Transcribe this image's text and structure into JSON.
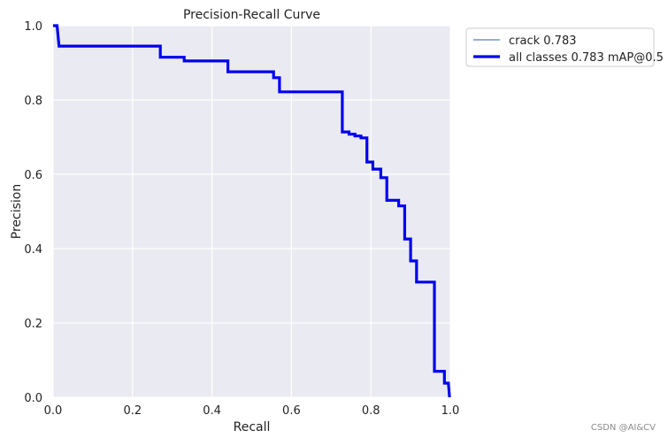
{
  "chart_data": {
    "type": "line",
    "title": "Precision-Recall Curve",
    "xlabel": "Recall",
    "ylabel": "Precision",
    "xlim": [
      0,
      1
    ],
    "ylim": [
      0,
      1
    ],
    "xticks": [
      "0.0",
      "0.2",
      "0.4",
      "0.6",
      "0.8",
      "1.0"
    ],
    "yticks": [
      "0.0",
      "0.2",
      "0.4",
      "0.6",
      "0.8",
      "1.0"
    ],
    "grid": true,
    "legend_position": "outside-top-right",
    "series": [
      {
        "name": "crack 0.783",
        "color": "#5b7fc0",
        "points": [
          [
            0.0,
            1.0
          ],
          [
            0.01,
            1.0
          ],
          [
            0.015,
            0.945
          ],
          [
            0.27,
            0.945
          ],
          [
            0.27,
            0.915
          ],
          [
            0.33,
            0.915
          ],
          [
            0.33,
            0.905
          ],
          [
            0.44,
            0.905
          ],
          [
            0.44,
            0.876
          ],
          [
            0.555,
            0.876
          ],
          [
            0.555,
            0.86
          ],
          [
            0.57,
            0.86
          ],
          [
            0.57,
            0.822
          ],
          [
            0.728,
            0.822
          ],
          [
            0.728,
            0.714
          ],
          [
            0.745,
            0.714
          ],
          [
            0.745,
            0.708
          ],
          [
            0.76,
            0.708
          ],
          [
            0.76,
            0.703
          ],
          [
            0.775,
            0.703
          ],
          [
            0.775,
            0.698
          ],
          [
            0.79,
            0.698
          ],
          [
            0.79,
            0.633
          ],
          [
            0.805,
            0.633
          ],
          [
            0.805,
            0.614
          ],
          [
            0.825,
            0.614
          ],
          [
            0.825,
            0.591
          ],
          [
            0.84,
            0.591
          ],
          [
            0.84,
            0.53
          ],
          [
            0.87,
            0.53
          ],
          [
            0.87,
            0.515
          ],
          [
            0.885,
            0.515
          ],
          [
            0.885,
            0.426
          ],
          [
            0.9,
            0.426
          ],
          [
            0.9,
            0.367
          ],
          [
            0.915,
            0.367
          ],
          [
            0.915,
            0.31
          ],
          [
            0.96,
            0.31
          ],
          [
            0.96,
            0.07
          ],
          [
            0.985,
            0.07
          ],
          [
            0.985,
            0.038
          ],
          [
            0.995,
            0.038
          ],
          [
            0.998,
            0.0
          ]
        ]
      },
      {
        "name": "all classes 0.783 mAP@0.5",
        "color": "#0000ee",
        "points": [
          [
            0.0,
            1.0
          ],
          [
            0.01,
            1.0
          ],
          [
            0.015,
            0.945
          ],
          [
            0.27,
            0.945
          ],
          [
            0.27,
            0.915
          ],
          [
            0.33,
            0.915
          ],
          [
            0.33,
            0.905
          ],
          [
            0.44,
            0.905
          ],
          [
            0.44,
            0.876
          ],
          [
            0.555,
            0.876
          ],
          [
            0.555,
            0.86
          ],
          [
            0.57,
            0.86
          ],
          [
            0.57,
            0.822
          ],
          [
            0.728,
            0.822
          ],
          [
            0.728,
            0.714
          ],
          [
            0.745,
            0.714
          ],
          [
            0.745,
            0.708
          ],
          [
            0.76,
            0.708
          ],
          [
            0.76,
            0.703
          ],
          [
            0.775,
            0.703
          ],
          [
            0.775,
            0.698
          ],
          [
            0.79,
            0.698
          ],
          [
            0.79,
            0.633
          ],
          [
            0.805,
            0.633
          ],
          [
            0.805,
            0.614
          ],
          [
            0.825,
            0.614
          ],
          [
            0.825,
            0.591
          ],
          [
            0.84,
            0.591
          ],
          [
            0.84,
            0.53
          ],
          [
            0.87,
            0.53
          ],
          [
            0.87,
            0.515
          ],
          [
            0.885,
            0.515
          ],
          [
            0.885,
            0.426
          ],
          [
            0.9,
            0.426
          ],
          [
            0.9,
            0.367
          ],
          [
            0.915,
            0.367
          ],
          [
            0.915,
            0.31
          ],
          [
            0.96,
            0.31
          ],
          [
            0.96,
            0.07
          ],
          [
            0.985,
            0.07
          ],
          [
            0.985,
            0.038
          ],
          [
            0.995,
            0.038
          ],
          [
            0.998,
            0.0
          ]
        ]
      }
    ]
  },
  "watermark": "CSDN @AI&CV",
  "colors": {
    "plot_background": "#eaeaf2",
    "grid": "#ffffff",
    "text": "#222222"
  }
}
